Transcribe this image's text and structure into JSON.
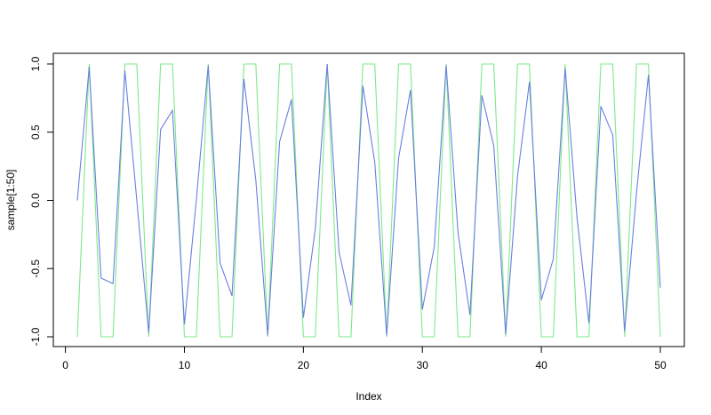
{
  "chart_data": {
    "type": "line",
    "title": "",
    "xlabel": "Index",
    "ylabel": "sample[1:50]",
    "xlim": [
      1,
      50
    ],
    "ylim": [
      -1,
      1
    ],
    "x_ticks": [
      0,
      10,
      20,
      30,
      40,
      50
    ],
    "y_ticks": [
      -1.0,
      -0.5,
      0.0,
      0.5,
      1.0
    ],
    "x_tick_labels": [
      "0",
      "10",
      "20",
      "30",
      "40",
      "50"
    ],
    "y_tick_labels": [
      "-1.0",
      "-0.5",
      "0.0",
      "0.5",
      "1.0"
    ],
    "grid": false,
    "legend": "none",
    "x": [
      1,
      2,
      3,
      4,
      5,
      6,
      7,
      8,
      9,
      10,
      11,
      12,
      13,
      14,
      15,
      16,
      17,
      18,
      19,
      20,
      21,
      22,
      23,
      24,
      25,
      26,
      27,
      28,
      29,
      30,
      31,
      32,
      33,
      34,
      35,
      36,
      37,
      38,
      39,
      40,
      41,
      42,
      43,
      44,
      45,
      46,
      47,
      48,
      49,
      50
    ],
    "series": [
      {
        "color": "#6b7fe0",
        "values": [
          0.0,
          0.98,
          -0.57,
          -0.61,
          0.95,
          0.0,
          -0.97,
          0.52,
          0.66,
          -0.91,
          0.0,
          0.99,
          -0.46,
          -0.7,
          0.89,
          0.15,
          -0.99,
          0.43,
          0.74,
          -0.86,
          -0.21,
          1.0,
          -0.38,
          -0.77,
          0.84,
          0.28,
          -0.99,
          0.31,
          0.81,
          -0.8,
          -0.34,
          0.99,
          -0.24,
          -0.84,
          0.77,
          0.4,
          -0.98,
          0.18,
          0.87,
          -0.73,
          -0.43,
          0.97,
          -0.13,
          -0.9,
          0.69,
          0.48,
          -0.96,
          0.06,
          0.92,
          -0.64
        ]
      },
      {
        "color": "#7fe88a",
        "values": [
          -1,
          1,
          -1,
          -1,
          1,
          1,
          -1,
          1,
          1,
          -1,
          -1,
          1,
          -1,
          -1,
          1,
          1,
          -1,
          1,
          1,
          -1,
          -1,
          1,
          -1,
          -1,
          1,
          1,
          -1,
          1,
          1,
          -1,
          -1,
          1,
          -1,
          -1,
          1,
          1,
          -1,
          1,
          1,
          -1,
          -1,
          1,
          -1,
          -1,
          1,
          1,
          -1,
          1,
          1,
          -1
        ]
      }
    ]
  }
}
